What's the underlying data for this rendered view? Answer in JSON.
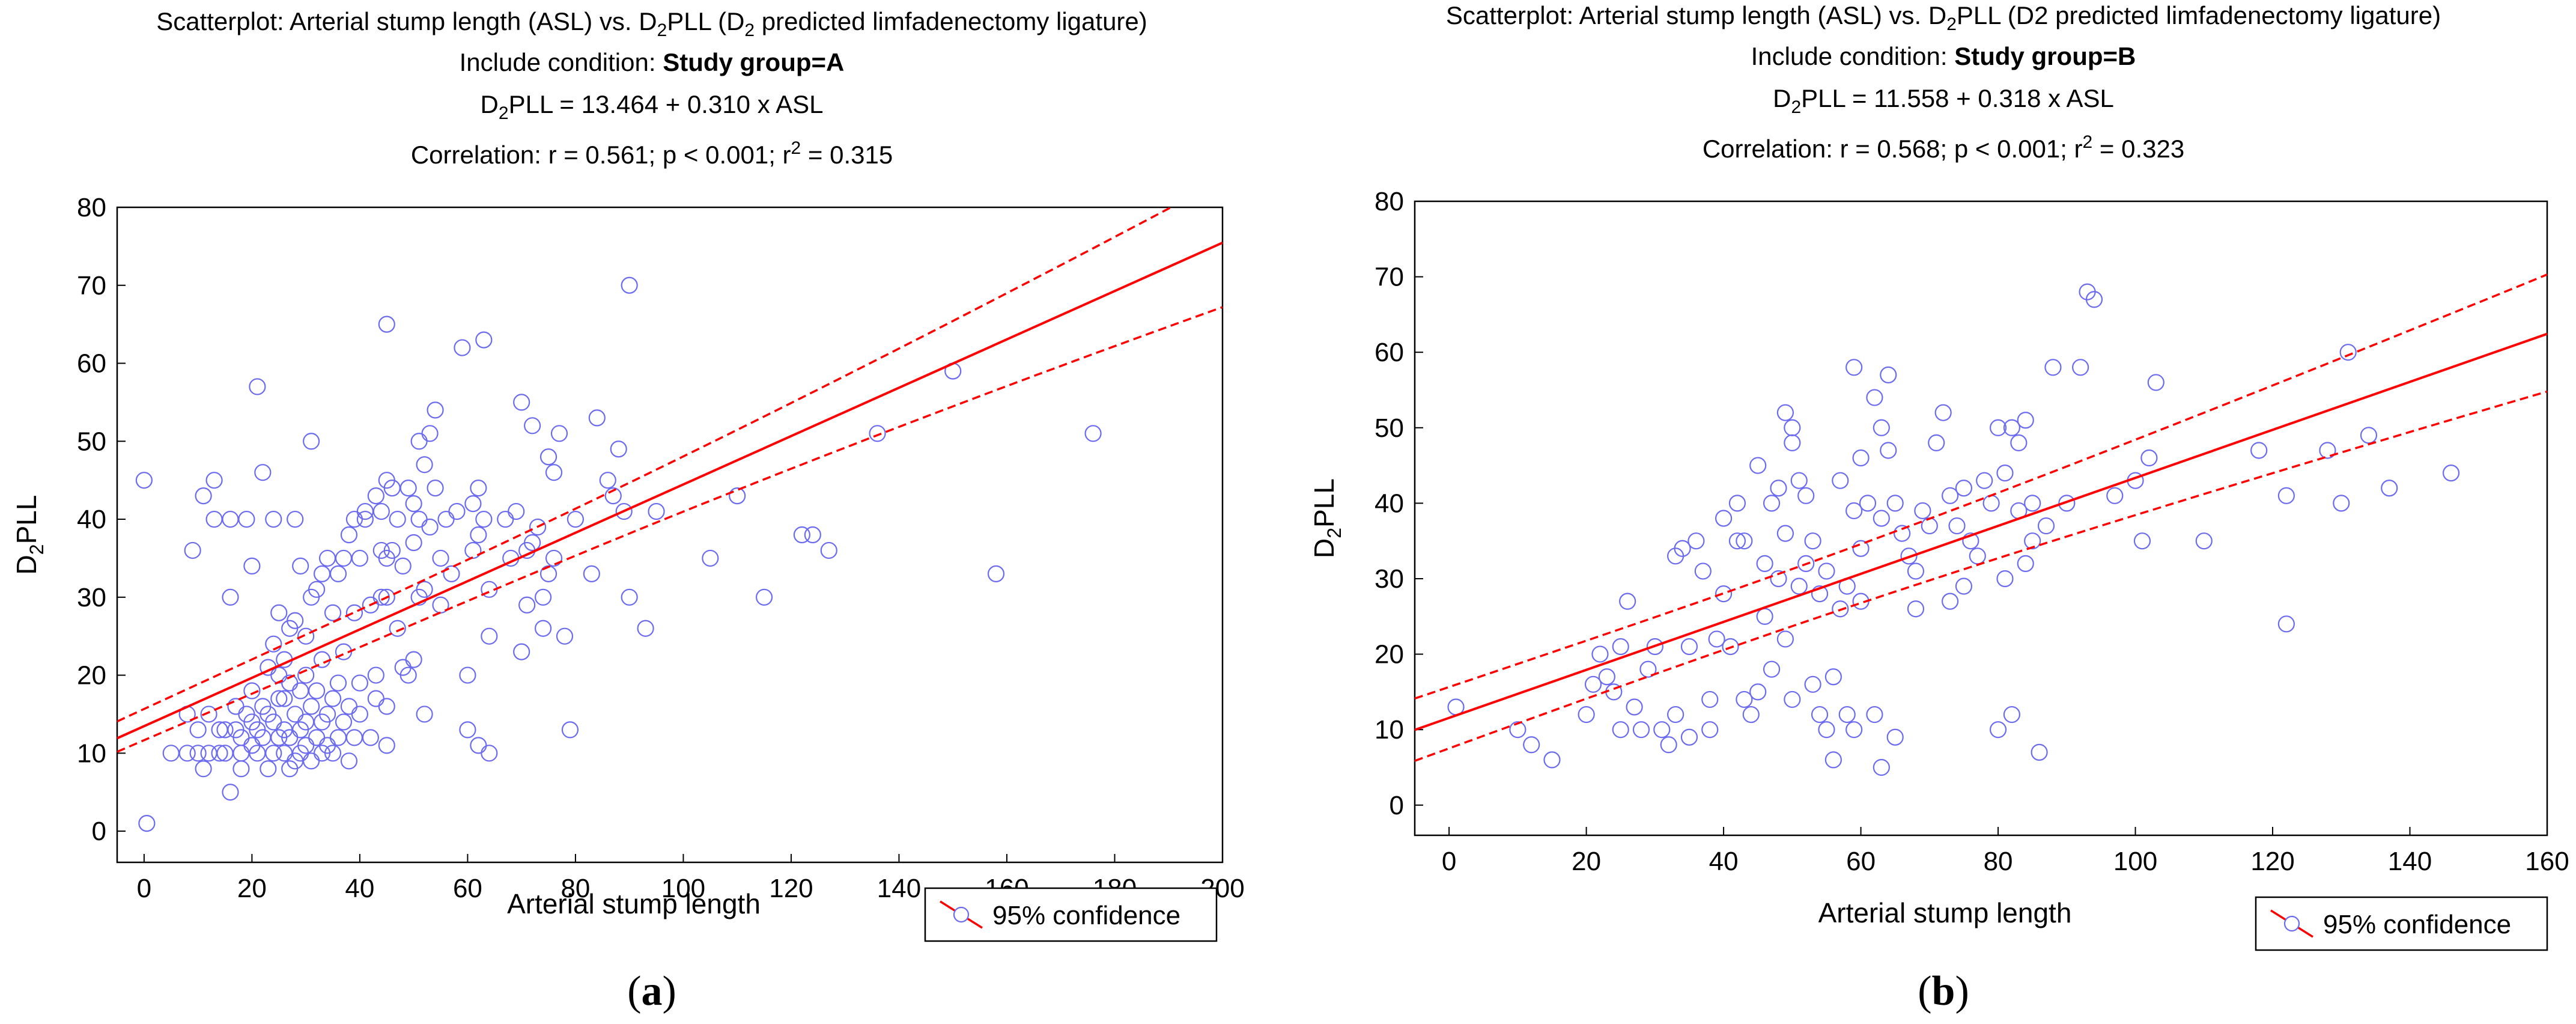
{
  "chart_data": [
    {
      "type": "scatter",
      "panel": "a",
      "caption": "(a)",
      "title": {
        "line1_pre": "Scatterplot: Arterial stump length (ASL) vs. D",
        "line1_sub": "2",
        "line1_mid": "PLL (D",
        "line1_sub2": "2",
        "line1_post": "  predicted limfadenectomy ligature)",
        "condition_label": "Include condition: ",
        "condition_value": "Study group=A",
        "eq_pre": "D",
        "eq_sub": "2",
        "eq_post": "PLL = 13.464 + 0.310 x ASL",
        "corr_pre": "Correlation: r = 0.561;  p < 0.001; r",
        "corr_sup": "2",
        "corr_post": " = 0.315"
      },
      "xlabel": "Arterial stump length",
      "ylabel_pre": "D",
      "ylabel_sub": "2",
      "ylabel_post": "PLL",
      "xlim": [
        -5,
        200
      ],
      "ylim": [
        -4,
        80
      ],
      "xticks": [
        "0",
        "20",
        "40",
        "60",
        "80",
        "100",
        "120",
        "140",
        "160",
        "180",
        "200"
      ],
      "yticks": [
        "0",
        "10",
        "20",
        "30",
        "40",
        "50",
        "60",
        "70",
        "80"
      ],
      "regression": {
        "intercept": 13.464,
        "slope": 0.31,
        "ci_lower_at_min": 9.6,
        "ci_upper_at_min": 14.8,
        "ci_lower_at_max": 67.2,
        "ci_upper_at_max": 83.5
      },
      "legend": "95% confidence",
      "colors": {
        "points": "#6b6bf0",
        "line": "#ff0000"
      },
      "points": [
        [
          0,
          45
        ],
        [
          0.5,
          1
        ],
        [
          5,
          10
        ],
        [
          8,
          10
        ],
        [
          8,
          15
        ],
        [
          9,
          36
        ],
        [
          10,
          10
        ],
        [
          10,
          13
        ],
        [
          11,
          8
        ],
        [
          11,
          43
        ],
        [
          12,
          10
        ],
        [
          12,
          15
        ],
        [
          13,
          40
        ],
        [
          13,
          45
        ],
        [
          14,
          10
        ],
        [
          14,
          13
        ],
        [
          15,
          10
        ],
        [
          15,
          13
        ],
        [
          16,
          5
        ],
        [
          16,
          40
        ],
        [
          16,
          30
        ],
        [
          17,
          16
        ],
        [
          17,
          13
        ],
        [
          18,
          10
        ],
        [
          18,
          8
        ],
        [
          18,
          12
        ],
        [
          19,
          15
        ],
        [
          19,
          40
        ],
        [
          20,
          11
        ],
        [
          20,
          14
        ],
        [
          20,
          18
        ],
        [
          20,
          34
        ],
        [
          21,
          10
        ],
        [
          21,
          13
        ],
        [
          21,
          57
        ],
        [
          22,
          12
        ],
        [
          22,
          16
        ],
        [
          22,
          46
        ],
        [
          23,
          8
        ],
        [
          23,
          15
        ],
        [
          23,
          21
        ],
        [
          24,
          10
        ],
        [
          24,
          14
        ],
        [
          24,
          24
        ],
        [
          24,
          40
        ],
        [
          25,
          12
        ],
        [
          25,
          17
        ],
        [
          25,
          20
        ],
        [
          25,
          28
        ],
        [
          26,
          10
        ],
        [
          26,
          13
        ],
        [
          26,
          17
        ],
        [
          26,
          22
        ],
        [
          27,
          8
        ],
        [
          27,
          12
        ],
        [
          27,
          19
        ],
        [
          27,
          26
        ],
        [
          28,
          9
        ],
        [
          28,
          15
        ],
        [
          28,
          27
        ],
        [
          28,
          40
        ],
        [
          29,
          10
        ],
        [
          29,
          13
        ],
        [
          29,
          18
        ],
        [
          29,
          34
        ],
        [
          30,
          11
        ],
        [
          30,
          14
        ],
        [
          30,
          20
        ],
        [
          30,
          25
        ],
        [
          31,
          9
        ],
        [
          31,
          16
        ],
        [
          31,
          30
        ],
        [
          31,
          50
        ],
        [
          32,
          12
        ],
        [
          32,
          18
        ],
        [
          32,
          31
        ],
        [
          33,
          10
        ],
        [
          33,
          14
        ],
        [
          33,
          22
        ],
        [
          33,
          33
        ],
        [
          34,
          15
        ],
        [
          34,
          35
        ],
        [
          34,
          11
        ],
        [
          35,
          10
        ],
        [
          35,
          17
        ],
        [
          35,
          28
        ],
        [
          36,
          12
        ],
        [
          36,
          19
        ],
        [
          36,
          33
        ],
        [
          37,
          14
        ],
        [
          37,
          23
        ],
        [
          37,
          35
        ],
        [
          38,
          9
        ],
        [
          38,
          16
        ],
        [
          38,
          38
        ],
        [
          39,
          12
        ],
        [
          39,
          28
        ],
        [
          39,
          40
        ],
        [
          40,
          15
        ],
        [
          40,
          19
        ],
        [
          40,
          35
        ],
        [
          41,
          40
        ],
        [
          41,
          41
        ],
        [
          42,
          12
        ],
        [
          42,
          29
        ],
        [
          43,
          20
        ],
        [
          43,
          43
        ],
        [
          43,
          17
        ],
        [
          44,
          30
        ],
        [
          44,
          36
        ],
        [
          44,
          41
        ],
        [
          45,
          11
        ],
        [
          45,
          16
        ],
        [
          45,
          30
        ],
        [
          45,
          35
        ],
        [
          45,
          45
        ],
        [
          45,
          65
        ],
        [
          46,
          36
        ],
        [
          46,
          44
        ],
        [
          47,
          40
        ],
        [
          47,
          26
        ],
        [
          48,
          21
        ],
        [
          48,
          34
        ],
        [
          49,
          44
        ],
        [
          49,
          20
        ],
        [
          50,
          22
        ],
        [
          50,
          37
        ],
        [
          50,
          42
        ],
        [
          51,
          30
        ],
        [
          51,
          40
        ],
        [
          51,
          50
        ],
        [
          52,
          15
        ],
        [
          52,
          31
        ],
        [
          52,
          47
        ],
        [
          53,
          51
        ],
        [
          53,
          39
        ],
        [
          54,
          54
        ],
        [
          54,
          44
        ],
        [
          55,
          35
        ],
        [
          55,
          29
        ],
        [
          56,
          40
        ],
        [
          57,
          33
        ],
        [
          58,
          41
        ],
        [
          59,
          62
        ],
        [
          60,
          13
        ],
        [
          60,
          20
        ],
        [
          61,
          36
        ],
        [
          61,
          42
        ],
        [
          62,
          38
        ],
        [
          62,
          11
        ],
        [
          62,
          44
        ],
        [
          63,
          63
        ],
        [
          63,
          40
        ],
        [
          64,
          10
        ],
        [
          64,
          25
        ],
        [
          64,
          31
        ],
        [
          67,
          40
        ],
        [
          68,
          35
        ],
        [
          69,
          41
        ],
        [
          70,
          55
        ],
        [
          70,
          23
        ],
        [
          71,
          29
        ],
        [
          71,
          36
        ],
        [
          72,
          52
        ],
        [
          72,
          37
        ],
        [
          73,
          39
        ],
        [
          74,
          26
        ],
        [
          74,
          30
        ],
        [
          75,
          48
        ],
        [
          75,
          33
        ],
        [
          76,
          46
        ],
        [
          76,
          35
        ],
        [
          77,
          51
        ],
        [
          78,
          25
        ],
        [
          79,
          13
        ],
        [
          80,
          40
        ],
        [
          83,
          33
        ],
        [
          84,
          53
        ],
        [
          86,
          45
        ],
        [
          87,
          43
        ],
        [
          88,
          49
        ],
        [
          89,
          41
        ],
        [
          90,
          70
        ],
        [
          90,
          30
        ],
        [
          93,
          26
        ],
        [
          95,
          41
        ],
        [
          105,
          35
        ],
        [
          110,
          43
        ],
        [
          115,
          30
        ],
        [
          122,
          38
        ],
        [
          124,
          38
        ],
        [
          127,
          36
        ],
        [
          136,
          51
        ],
        [
          150,
          59
        ],
        [
          158,
          33
        ],
        [
          176,
          51
        ]
      ]
    },
    {
      "type": "scatter",
      "panel": "b",
      "caption": "(b)",
      "title": {
        "line1_pre": "Scatterplot: Arterial stump length (ASL) vs. D",
        "line1_sub": "2",
        "line1_post": "PLL (D2  predicted limfadenectomy ligature)",
        "condition_label": "Include condition: ",
        "condition_value": "Study group=B",
        "eq_pre": "D",
        "eq_sub": "2",
        "eq_post": "PLL = 11.558 + 0.318 x ASL",
        "corr_pre": "Correlation: r = 0.568; p < 0.001; r",
        "corr_sup": "2",
        "corr_post": " = 0.323"
      },
      "xlabel": "Arterial stump length",
      "ylabel_pre": "D",
      "ylabel_sub": "2",
      "ylabel_post": "PLL",
      "xlim": [
        -5,
        160
      ],
      "ylim": [
        -4,
        80
      ],
      "xticks": [
        "0",
        "20",
        "40",
        "60",
        "80",
        "100",
        "120",
        "140",
        "160"
      ],
      "yticks": [
        "0",
        "10",
        "20",
        "30",
        "40",
        "50",
        "60",
        "70",
        "80"
      ],
      "regression": {
        "intercept": 11.558,
        "slope": 0.318,
        "ci_lower_at_min": 4.5,
        "ci_upper_at_min": 15.5,
        "ci_lower_at_max": 54.8,
        "ci_upper_at_max": 70.3
      },
      "legend": "95% confidence",
      "colors": {
        "points": "#6b6bf0",
        "line": "#ff0000"
      },
      "points": [
        [
          1,
          13
        ],
        [
          10,
          10
        ],
        [
          12,
          8
        ],
        [
          15,
          6
        ],
        [
          20,
          12
        ],
        [
          21,
          16
        ],
        [
          22,
          20
        ],
        [
          23,
          17
        ],
        [
          24,
          15
        ],
        [
          25,
          10
        ],
        [
          25,
          21
        ],
        [
          26,
          27
        ],
        [
          27,
          13
        ],
        [
          28,
          10
        ],
        [
          29,
          18
        ],
        [
          30,
          21
        ],
        [
          31,
          10
        ],
        [
          32,
          8
        ],
        [
          33,
          33
        ],
        [
          33,
          12
        ],
        [
          34,
          34
        ],
        [
          35,
          9
        ],
        [
          35,
          21
        ],
        [
          36,
          35
        ],
        [
          37,
          31
        ],
        [
          38,
          14
        ],
        [
          38,
          10
        ],
        [
          39,
          22
        ],
        [
          40,
          38
        ],
        [
          40,
          28
        ],
        [
          41,
          21
        ],
        [
          42,
          35
        ],
        [
          42,
          40
        ],
        [
          43,
          14
        ],
        [
          43,
          35
        ],
        [
          44,
          12
        ],
        [
          45,
          45
        ],
        [
          45,
          15
        ],
        [
          46,
          32
        ],
        [
          46,
          25
        ],
        [
          47,
          40
        ],
        [
          47,
          18
        ],
        [
          48,
          42
        ],
        [
          48,
          30
        ],
        [
          49,
          52
        ],
        [
          49,
          36
        ],
        [
          49,
          22
        ],
        [
          50,
          48
        ],
        [
          50,
          50
        ],
        [
          50,
          14
        ],
        [
          51,
          43
        ],
        [
          51,
          29
        ],
        [
          52,
          41
        ],
        [
          52,
          32
        ],
        [
          53,
          35
        ],
        [
          53,
          16
        ],
        [
          54,
          28
        ],
        [
          54,
          12
        ],
        [
          55,
          31
        ],
        [
          55,
          10
        ],
        [
          56,
          17
        ],
        [
          56,
          6
        ],
        [
          57,
          43
        ],
        [
          57,
          26
        ],
        [
          58,
          29
        ],
        [
          58,
          12
        ],
        [
          59,
          58
        ],
        [
          59,
          39
        ],
        [
          59,
          10
        ],
        [
          60,
          34
        ],
        [
          60,
          46
        ],
        [
          60,
          27
        ],
        [
          61,
          40
        ],
        [
          62,
          54
        ],
        [
          62,
          12
        ],
        [
          63,
          50
        ],
        [
          63,
          38
        ],
        [
          63,
          5
        ],
        [
          64,
          57
        ],
        [
          64,
          47
        ],
        [
          65,
          9
        ],
        [
          65,
          40
        ],
        [
          66,
          36
        ],
        [
          67,
          33
        ],
        [
          68,
          26
        ],
        [
          68,
          31
        ],
        [
          69,
          39
        ],
        [
          70,
          37
        ],
        [
          71,
          48
        ],
        [
          72,
          52
        ],
        [
          73,
          41
        ],
        [
          73,
          27
        ],
        [
          74,
          37
        ],
        [
          75,
          42
        ],
        [
          75,
          29
        ],
        [
          76,
          35
        ],
        [
          77,
          33
        ],
        [
          78,
          43
        ],
        [
          79,
          40
        ],
        [
          80,
          50
        ],
        [
          80,
          10
        ],
        [
          81,
          44
        ],
        [
          81,
          30
        ],
        [
          82,
          50
        ],
        [
          82,
          12
        ],
        [
          83,
          48
        ],
        [
          83,
          39
        ],
        [
          84,
          51
        ],
        [
          84,
          32
        ],
        [
          85,
          40
        ],
        [
          85,
          35
        ],
        [
          86,
          7
        ],
        [
          87,
          37
        ],
        [
          88,
          58
        ],
        [
          90,
          40
        ],
        [
          92,
          58
        ],
        [
          93,
          68
        ],
        [
          94,
          67
        ],
        [
          97,
          41
        ],
        [
          100,
          43
        ],
        [
          101,
          35
        ],
        [
          102,
          46
        ],
        [
          103,
          56
        ],
        [
          110,
          35
        ],
        [
          118,
          47
        ],
        [
          122,
          41
        ],
        [
          122,
          24
        ],
        [
          128,
          47
        ],
        [
          130,
          40
        ],
        [
          131,
          60
        ],
        [
          134,
          49
        ],
        [
          137,
          42
        ],
        [
          146,
          44
        ]
      ]
    }
  ]
}
